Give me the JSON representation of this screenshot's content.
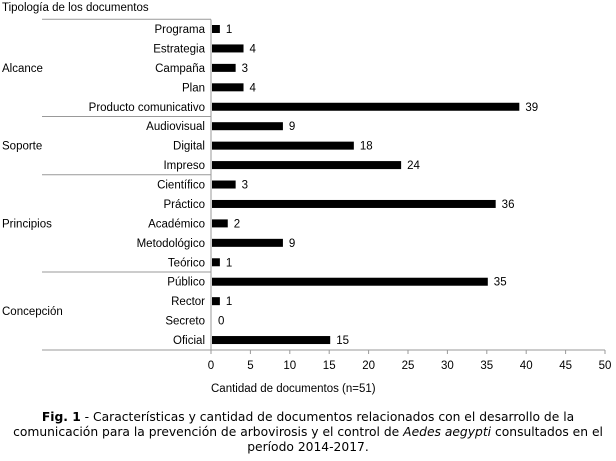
{
  "chart_data": {
    "type": "bar",
    "orientation": "horizontal",
    "title": "Tipología de los documentos",
    "xlabel": "Cantidad de documentos (n=51)",
    "ylabel": "Tipología de los documentos",
    "xlim": [
      0,
      50
    ],
    "xticks": [
      0,
      5,
      10,
      15,
      20,
      25,
      30,
      35,
      40,
      45,
      50
    ],
    "grid": false,
    "groups": [
      {
        "name": "Alcance",
        "categories": [
          "Programa",
          "Estrategia",
          "Campaña",
          "Plan",
          "Producto comunicativo"
        ],
        "values": [
          1,
          4,
          3,
          4,
          39
        ]
      },
      {
        "name": "Soporte",
        "categories": [
          "Audiovisual",
          "Digital",
          "Impreso"
        ],
        "values": [
          9,
          18,
          24
        ]
      },
      {
        "name": "Principios",
        "categories": [
          "Científico",
          "Práctico",
          "Académico",
          "Metodológico",
          "Teórico"
        ],
        "values": [
          3,
          36,
          2,
          9,
          1
        ]
      },
      {
        "name": "Concepción",
        "categories": [
          "Público",
          "Rector",
          "Secreto",
          "Oficial"
        ],
        "values": [
          35,
          1,
          0,
          15
        ]
      }
    ],
    "bar_color": "#000000"
  },
  "caption": {
    "label": "Fig. 1",
    "text_before": " - Características y cantidad de documentos relacionados con el desarrollo de la comunicación para la prevención de arbovirosis y el control de ",
    "italic": "Aedes aegypti",
    "text_after": " consultados en el período 2014-2017."
  }
}
